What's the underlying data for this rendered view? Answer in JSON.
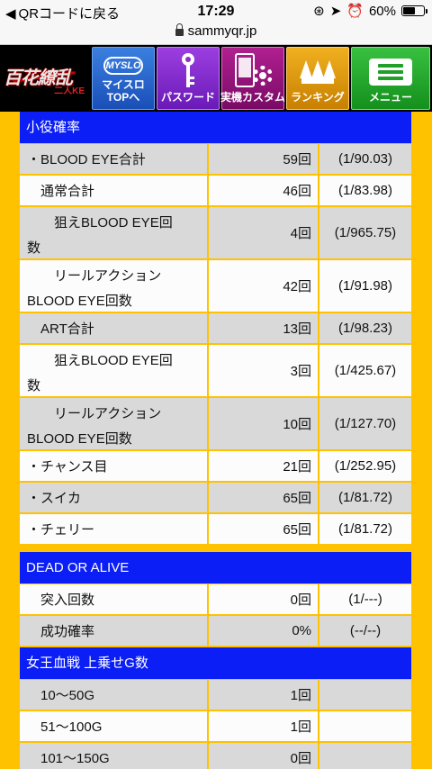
{
  "status_bar": {
    "back_label": "QRコードに戻る",
    "time": "17:29",
    "battery": "60%",
    "battery_level": 0.6
  },
  "address_bar": {
    "url": "sammyqr.jp"
  },
  "header": {
    "logo_text": "百花繚乱",
    "logo_subtext": "二人KE",
    "nav": [
      {
        "icon": "myslo-icon",
        "icon_text": "MYSLO",
        "label": "マイスロ\nTOPへ"
      },
      {
        "icon": "key-icon",
        "label": "パスワード"
      },
      {
        "icon": "phone-gear-icon",
        "label": "実機カスタム"
      },
      {
        "icon": "crown-icon",
        "label": "ランキング"
      },
      {
        "icon": "menu-icon",
        "label": "メニュー"
      }
    ]
  },
  "sections": [
    {
      "title": "小役確率",
      "rows": [
        {
          "label": "・BLOOD EYE合計",
          "count": "59回",
          "prob": "(1/90.03)",
          "shade": "gray"
        },
        {
          "label": "　通常合計",
          "count": "46回",
          "prob": "(1/83.98)",
          "shade": "white"
        },
        {
          "label": "　　狙えBLOOD EYE回\n数",
          "count": "4回",
          "prob": "(1/965.75)",
          "shade": "gray"
        },
        {
          "label": "　　リールアクション\nBLOOD EYE回数",
          "count": "42回",
          "prob": "(1/91.98)",
          "shade": "white"
        },
        {
          "label": "　ART合計",
          "count": "13回",
          "prob": "(1/98.23)",
          "shade": "gray"
        },
        {
          "label": "　　狙えBLOOD EYE回\n数",
          "count": "3回",
          "prob": "(1/425.67)",
          "shade": "white"
        },
        {
          "label": "　　リールアクション\nBLOOD EYE回数",
          "count": "10回",
          "prob": "(1/127.70)",
          "shade": "gray"
        },
        {
          "label": "・チャンス目",
          "count": "21回",
          "prob": "(1/252.95)",
          "shade": "white"
        },
        {
          "label": "・スイカ",
          "count": "65回",
          "prob": "(1/81.72)",
          "shade": "gray"
        },
        {
          "label": "・チェリー",
          "count": "65回",
          "prob": "(1/81.72)",
          "shade": "white"
        }
      ]
    },
    {
      "title": "DEAD OR ALIVE",
      "rows": [
        {
          "label": "　突入回数",
          "count": "0回",
          "prob": "(1/---)",
          "shade": "white"
        },
        {
          "label": "　成功確率",
          "count": "0%",
          "prob": "(--/--)",
          "shade": "gray"
        }
      ]
    },
    {
      "title": "女王血戦 上乗せG数",
      "rows": [
        {
          "label": "　10～50G",
          "count": "1回",
          "prob": "",
          "shade": "gray"
        },
        {
          "label": "　51～100G",
          "count": "1回",
          "prob": "",
          "shade": "white"
        },
        {
          "label": "　101～150G",
          "count": "0回",
          "prob": "",
          "shade": "gray"
        }
      ]
    }
  ]
}
